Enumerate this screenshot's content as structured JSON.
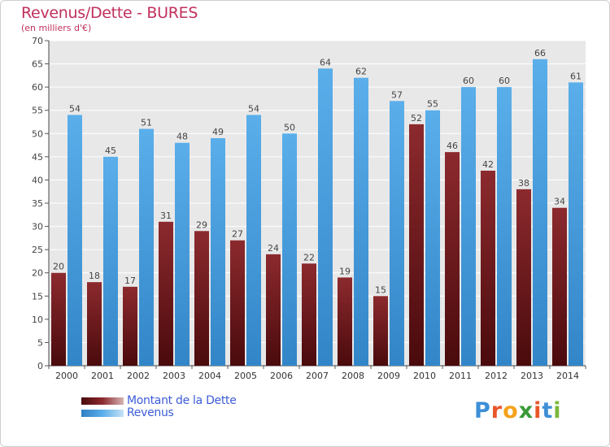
{
  "chart_data": {
    "type": "bar",
    "title": "Revenus/Dette - BURES",
    "subtitle": "(en milliers d'€)",
    "categories": [
      "2000",
      "2001",
      "2002",
      "2003",
      "2004",
      "2005",
      "2006",
      "2007",
      "2008",
      "2009",
      "2010",
      "2011",
      "2012",
      "2013",
      "2014"
    ],
    "series": [
      {
        "name": "Montant de la Dette",
        "values": [
          20,
          18,
          17,
          31,
          29,
          27,
          24,
          22,
          19,
          15,
          52,
          46,
          42,
          38,
          34
        ],
        "color": "#7a1e22"
      },
      {
        "name": "Revenus",
        "values": [
          54,
          45,
          51,
          48,
          49,
          54,
          50,
          64,
          62,
          57,
          55,
          60,
          60,
          66,
          61
        ],
        "color": "#4fa6e6"
      }
    ],
    "ylim": [
      0,
      70
    ],
    "yticks": [
      0,
      5,
      10,
      15,
      20,
      25,
      30,
      35,
      40,
      45,
      50,
      55,
      60,
      65,
      70
    ],
    "grid": true,
    "legend": "bottom-left"
  },
  "logo": {
    "text": "Proxiti",
    "letters": [
      "P",
      "r",
      "o",
      "x",
      "i",
      "t",
      "i"
    ],
    "colors": [
      "#3d8fd6",
      "#e8562a",
      "#f4a21c",
      "#3a9a3a",
      "#e8562a",
      "#3d8fd6",
      "#7ab83a"
    ]
  }
}
